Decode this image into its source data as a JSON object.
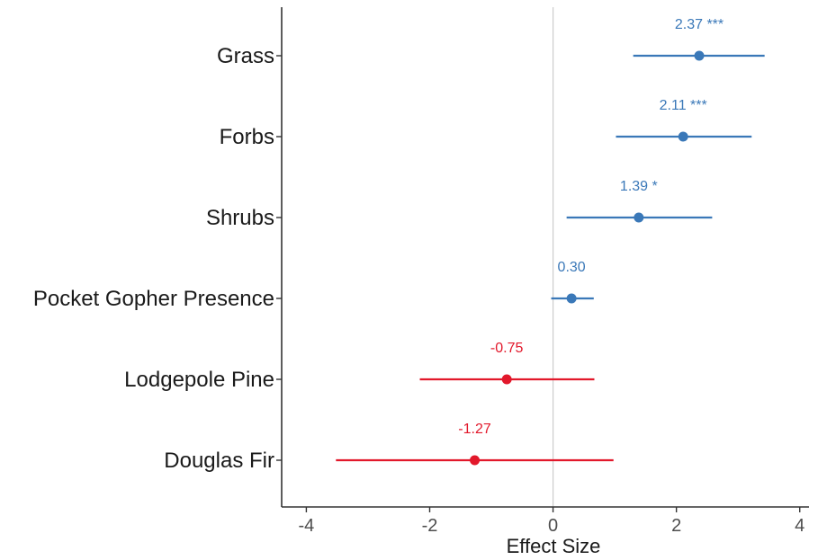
{
  "chart_data": {
    "type": "forest",
    "xlabel": "Effect Size",
    "xlim": [
      -4.4,
      4.15
    ],
    "x_ticks": [
      "-4",
      "-2",
      "0",
      "2",
      "4"
    ],
    "x_tick_values": [
      -4,
      -2,
      0,
      2,
      4
    ],
    "reference_line": 0,
    "grid": false,
    "colors": {
      "positive": "#3a78b8",
      "negative": "#e2182b",
      "reference": "#cccccc",
      "axis": "#333333"
    },
    "categories": [
      "Grass",
      "Forbs",
      "Shrubs",
      "Pocket Gopher Presence",
      "Lodgepole Pine",
      "Douglas Fir"
    ],
    "points": [
      {
        "category": "Grass",
        "estimate": 2.37,
        "low": 1.3,
        "high": 3.43,
        "label": "2.37 ***"
      },
      {
        "category": "Forbs",
        "estimate": 2.11,
        "low": 1.02,
        "high": 3.22,
        "label": "2.11 ***"
      },
      {
        "category": "Shrubs",
        "estimate": 1.39,
        "low": 0.22,
        "high": 2.58,
        "label": "1.39 *"
      },
      {
        "category": "Pocket Gopher Presence",
        "estimate": 0.3,
        "low": -0.03,
        "high": 0.66,
        "label": "0.30"
      },
      {
        "category": "Lodgepole Pine",
        "estimate": -0.75,
        "low": -2.16,
        "high": 0.67,
        "label": "-0.75"
      },
      {
        "category": "Douglas Fir",
        "estimate": -1.27,
        "low": -3.52,
        "high": 0.98,
        "label": "-1.27"
      }
    ]
  }
}
